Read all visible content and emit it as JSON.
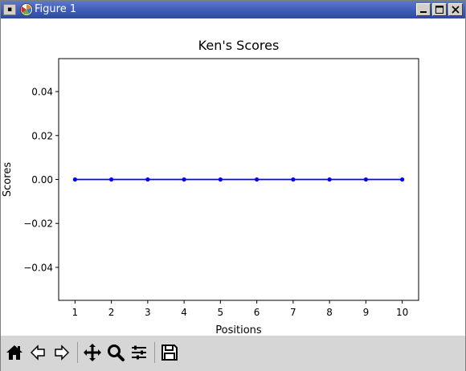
{
  "window": {
    "title": "Figure 1",
    "icons": {
      "system_menu": "system-menu-icon",
      "app": "matplotlib-icon",
      "minimize": "minimize-icon",
      "maximize": "maximize-icon",
      "close": "close-icon"
    }
  },
  "toolbar": {
    "buttons": [
      {
        "name": "home-icon",
        "action": "home"
      },
      {
        "name": "back-arrow-icon",
        "action": "back"
      },
      {
        "name": "forward-arrow-icon",
        "action": "forward"
      },
      {
        "name": "pan-move-icon",
        "action": "pan"
      },
      {
        "name": "zoom-magnifier-icon",
        "action": "zoom"
      },
      {
        "name": "configure-subplots-icon",
        "action": "subplots"
      },
      {
        "name": "save-floppy-icon",
        "action": "save"
      }
    ]
  },
  "chart_data": {
    "type": "line",
    "title": "Ken's Scores",
    "xlabel": "Positions",
    "ylabel": "Scores",
    "x": [
      1,
      2,
      3,
      4,
      5,
      6,
      7,
      8,
      9,
      10
    ],
    "series": [
      {
        "values": [
          0,
          0,
          0,
          0,
          0,
          0,
          0,
          0,
          0,
          0
        ],
        "color": "#0000ff",
        "marker": "dot"
      }
    ],
    "xlim": [
      0.55,
      10.45
    ],
    "ylim": [
      -0.055,
      0.055
    ],
    "xticks": [
      1,
      2,
      3,
      4,
      5,
      6,
      7,
      8,
      9,
      10
    ],
    "yticks": [
      0.04,
      0.02,
      0.0,
      -0.02,
      -0.04
    ],
    "ytick_labels": [
      "0.04",
      "0.02",
      "0.00",
      "−0.02",
      "−0.04"
    ],
    "grid": false,
    "legend": false
  }
}
